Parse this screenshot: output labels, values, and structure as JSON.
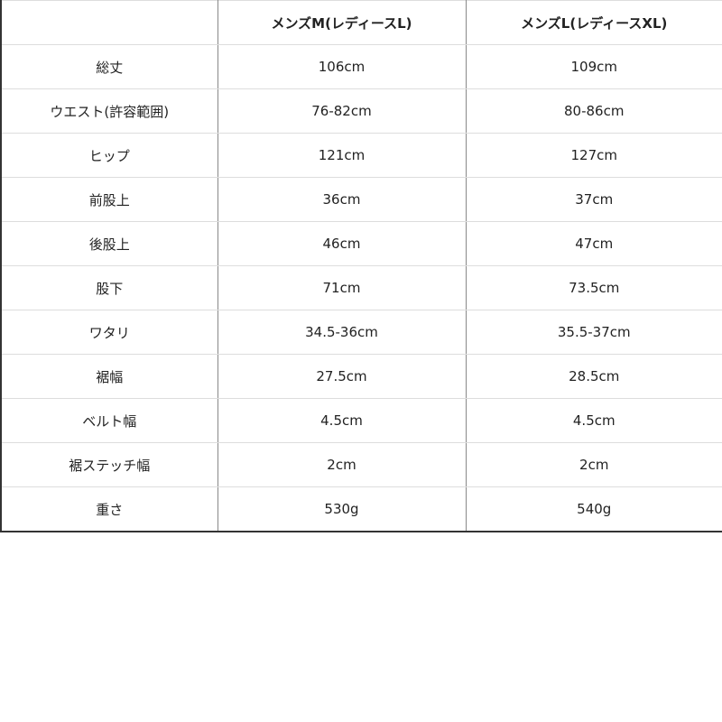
{
  "table": {
    "headers": [
      "",
      "メンズM(レディースL)",
      "メンズL(レディースXL)"
    ],
    "rows": [
      [
        "総丈",
        "106cm",
        "109cm"
      ],
      [
        "ウエスト(許容範囲)",
        "76-82cm",
        "80-86cm"
      ],
      [
        "ヒップ",
        "121cm",
        "127cm"
      ],
      [
        "前股上",
        "36cm",
        "37cm"
      ],
      [
        "後股上",
        "46cm",
        "47cm"
      ],
      [
        "股下",
        "71cm",
        "73.5cm"
      ],
      [
        "ワタリ",
        "34.5-36cm",
        "35.5-37cm"
      ],
      [
        "裾幅",
        "27.5cm",
        "28.5cm"
      ],
      [
        "ベルト幅",
        "4.5cm",
        "4.5cm"
      ],
      [
        "裾ステッチ幅",
        "2cm",
        "2cm"
      ],
      [
        "重さ",
        "530g",
        "540g"
      ]
    ]
  }
}
